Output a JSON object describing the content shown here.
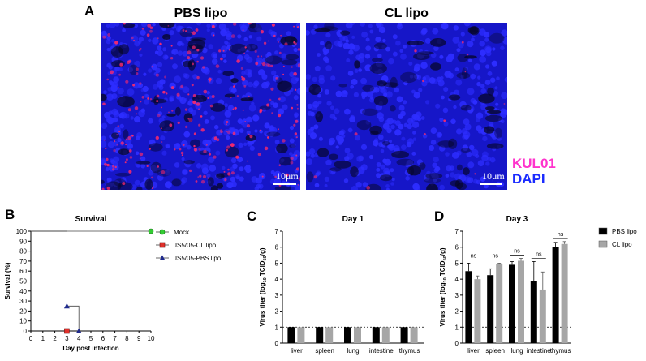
{
  "panel_a": {
    "letter": "A",
    "images": [
      {
        "title": "PBS lipo",
        "scale_label": "10μm"
      },
      {
        "title": "CL lipo",
        "scale_label": "10μm"
      }
    ],
    "stain_labels": [
      {
        "text": "KUL01",
        "color": "#ff33cc"
      },
      {
        "text": "DAPI",
        "color": "#1a2bff"
      }
    ],
    "colors": {
      "background": "#1616c8",
      "dapi": "#2d2dff",
      "kul01": "#ff2a6a"
    }
  },
  "panel_b": {
    "letter": "B"
  },
  "panel_c": {
    "letter": "C"
  },
  "panel_d": {
    "letter": "D"
  },
  "chart_data": [
    {
      "type": "line",
      "title": "Survival",
      "xlabel": "Day post infection",
      "ylabel": "Survival (%)",
      "xlim": [
        0,
        10
      ],
      "ylim": [
        0,
        100
      ],
      "xticks": [
        "0",
        "1",
        "2",
        "3",
        "4",
        "5",
        "6",
        "7",
        "8",
        "9",
        "10"
      ],
      "yticks": [
        "0",
        "10",
        "20",
        "30",
        "40",
        "50",
        "60",
        "70",
        "80",
        "90",
        "100"
      ],
      "legend_position": "right",
      "series": [
        {
          "name": "Mock",
          "color": "#33cc33",
          "marker": "circle",
          "x": [
            0,
            10
          ],
          "y": [
            100,
            100
          ],
          "steps": [
            [
              0,
              100
            ],
            [
              10,
              100
            ]
          ],
          "markers": [
            [
              10,
              100
            ]
          ]
        },
        {
          "name": "JS5/05-CL lipo",
          "color": "#e0302a",
          "marker": "square",
          "x": [
            0,
            3,
            3
          ],
          "y": [
            100,
            100,
            0
          ],
          "steps": [
            [
              0,
              100
            ],
            [
              3,
              100
            ],
            [
              3,
              0
            ]
          ],
          "markers": [
            [
              3,
              0
            ]
          ]
        },
        {
          "name": "JS5/05-PBS lipo",
          "color": "#1f2a8c",
          "marker": "triangle",
          "x": [
            0,
            3,
            3,
            4,
            4
          ],
          "y": [
            100,
            100,
            25,
            25,
            0
          ],
          "steps": [
            [
              0,
              100
            ],
            [
              3,
              100
            ],
            [
              3,
              25
            ],
            [
              4,
              25
            ],
            [
              4,
              0
            ]
          ],
          "markers": [
            [
              3,
              25
            ],
            [
              4,
              0
            ]
          ]
        }
      ]
    },
    {
      "type": "bar",
      "title": "Day 1",
      "ylabel": "Virus titer (log10 TCID50/g)",
      "ylim": [
        0,
        7
      ],
      "yticks": [
        "0",
        "1",
        "2",
        "3",
        "4",
        "5",
        "6",
        "7"
      ],
      "dashed_line": 1,
      "categories": [
        "liver",
        "spleen",
        "lung",
        "intestine",
        "thymus"
      ],
      "series": [
        {
          "name": "PBS lipo",
          "color": "#000000",
          "values": [
            1,
            1,
            1,
            1,
            1
          ],
          "errors": [
            0,
            0,
            0,
            0,
            0
          ]
        },
        {
          "name": "CL lipo",
          "color": "#a6a6a6",
          "values": [
            1,
            1,
            1,
            1,
            1
          ],
          "errors": [
            0,
            0,
            0,
            0,
            0
          ]
        }
      ],
      "annotations": []
    },
    {
      "type": "bar",
      "title": "Day 3",
      "ylabel": "Virus titer (log10 TCID50/g)",
      "ylim": [
        0,
        7
      ],
      "yticks": [
        "0",
        "1",
        "2",
        "3",
        "4",
        "5",
        "6",
        "7"
      ],
      "dashed_line": 1,
      "legend_position": "top-right",
      "categories": [
        "liver",
        "spleen",
        "lung",
        "intestine",
        "thymus"
      ],
      "series": [
        {
          "name": "PBS lipo",
          "color": "#000000",
          "values": [
            4.5,
            4.25,
            4.9,
            3.9,
            6.0
          ],
          "errors": [
            0.5,
            0.4,
            0.2,
            1.2,
            0.3
          ]
        },
        {
          "name": "CL lipo",
          "color": "#a6a6a6",
          "values": [
            4.0,
            4.95,
            5.15,
            3.35,
            6.2
          ],
          "errors": [
            0.2,
            0.05,
            0.15,
            1.1,
            0.15
          ]
        }
      ],
      "annotations": [
        "ns",
        "ns",
        "ns",
        "ns",
        "ns"
      ]
    }
  ]
}
